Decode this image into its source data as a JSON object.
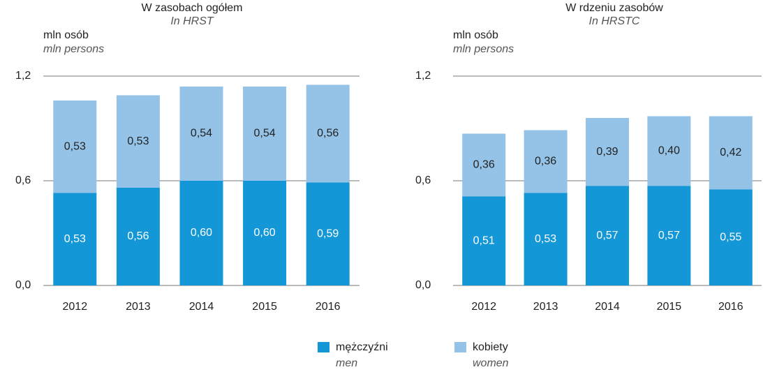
{
  "chart_data": [
    {
      "type": "stacked-bar",
      "title": "W zasobach ogółem",
      "subtitle": "In HRST",
      "y_label": "mln osób",
      "y_label_en": "mln persons",
      "categories": [
        "2012",
        "2013",
        "2014",
        "2015",
        "2016"
      ],
      "series": [
        {
          "values": [
            0.53,
            0.56,
            0.6,
            0.6,
            0.59
          ],
          "value_labels": [
            "0,53",
            "0,56",
            "0,60",
            "0,60",
            "0,59"
          ]
        },
        {
          "values": [
            0.53,
            0.53,
            0.54,
            0.54,
            0.56
          ],
          "value_labels": [
            "0,53",
            "0,53",
            "0,54",
            "0,54",
            "0,56"
          ]
        }
      ],
      "ylim": [
        0,
        1.2
      ],
      "yticks": [
        {
          "value": 0,
          "label": "0,0"
        },
        {
          "value": 0.6,
          "label": "0,6"
        },
        {
          "value": 1.2,
          "label": "1,2"
        }
      ],
      "grid": true
    },
    {
      "type": "stacked-bar",
      "title": "W rdzeniu zasobów",
      "subtitle": "In HRSTC",
      "y_label": "mln osób",
      "y_label_en": "mln persons",
      "categories": [
        "2012",
        "2013",
        "2014",
        "2015",
        "2016"
      ],
      "series": [
        {
          "values": [
            0.51,
            0.53,
            0.57,
            0.57,
            0.55
          ],
          "value_labels": [
            "0,51",
            "0,53",
            "0,57",
            "0,57",
            "0,55"
          ]
        },
        {
          "values": [
            0.36,
            0.36,
            0.39,
            0.4,
            0.42
          ],
          "value_labels": [
            "0,36",
            "0,36",
            "0,39",
            "0,40",
            "0,42"
          ]
        }
      ],
      "ylim": [
        0,
        1.2
      ],
      "yticks": [
        {
          "value": 0,
          "label": "0,0"
        },
        {
          "value": 0.6,
          "label": "0,6"
        },
        {
          "value": 1.2,
          "label": "1,2"
        }
      ],
      "grid": true
    }
  ],
  "legend": [
    {
      "name": "mężczyźni",
      "name_en": "men",
      "color": "#1497d6",
      "label_color": "#ffffff"
    },
    {
      "name": "kobiety",
      "name_en": "women",
      "color": "#94c3e7",
      "label_color": "#222222"
    }
  ]
}
